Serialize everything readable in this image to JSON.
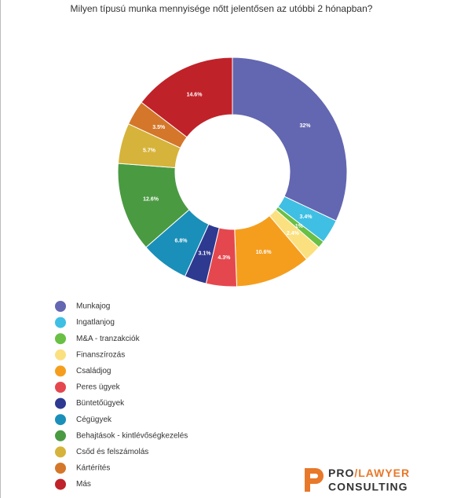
{
  "chart_data": {
    "type": "donut",
    "title": "Milyen típusú munka mennyisége nőtt jelentősen az utóbbi 2 hónapban?",
    "categories": [
      "Munkajog",
      "Ingatlanjog",
      "M&A - tranzakciók",
      "Finanszírozás",
      "Családjog",
      "Peres ügyek",
      "Büntetőügyek",
      "Cégügyek",
      "Behajtások - kintlévőségkezelés",
      "Csőd és felszámolás",
      "Kártérítés",
      "Más"
    ],
    "values": [
      32,
      3.4,
      1,
      2.4,
      10.6,
      4.3,
      3.1,
      6.8,
      12.6,
      5.7,
      3.5,
      14.6
    ],
    "value_labels": [
      "32%",
      "3.4%",
      "1%",
      "2.4%",
      "10.6%",
      "4.3%",
      "3.1%",
      "6.8%",
      "12.6%",
      "5.7%",
      "3.5%",
      "14.6%"
    ],
    "colors": [
      "#6366b0",
      "#3fbfe3",
      "#6abf45",
      "#fbe080",
      "#f59e1e",
      "#e5474e",
      "#2e3990",
      "#1a8fb9",
      "#4a9a42",
      "#d6b33a",
      "#d4772a",
      "#c02229"
    ],
    "legend": "bottom-left"
  },
  "logo": {
    "pro": "PRO",
    "slash": "/",
    "lawyer": "LAWYER",
    "consulting": "CONSULTING"
  }
}
